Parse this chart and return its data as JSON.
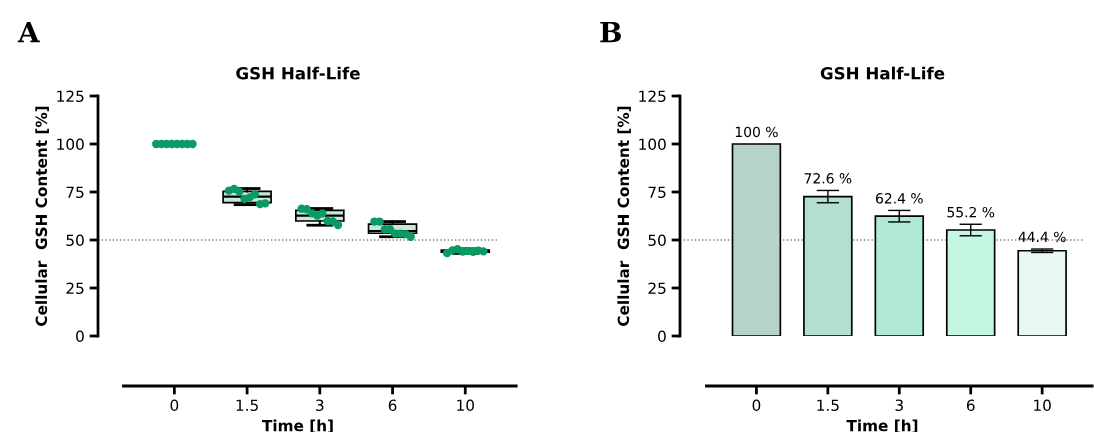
{
  "chart_data": [
    {
      "type": "box",
      "title": "GSH Half-Life",
      "xlabel": "Time [h]",
      "ylabel": "Cellular  GSH Content [%]",
      "annotations": [
        "A"
      ],
      "categories": [
        "0",
        "1.5",
        "3",
        "6",
        "10"
      ],
      "ylim": [
        0,
        125
      ],
      "yticks": [
        0,
        25,
        50,
        75,
        100,
        125
      ],
      "grid": false,
      "legend": false,
      "ref_lines": [
        {
          "axis": "y",
          "value": 50,
          "color": "#808080",
          "line_style": "dotted"
        }
      ],
      "series": [
        {
          "type": "box",
          "color": "#c9e8da",
          "boxes": [
            null,
            {
              "low": 68.4,
              "q1": 69.5,
              "median": 72.6,
              "q3": 75.3,
              "high": 76.8
            },
            {
              "low": 57.7,
              "q1": 59.9,
              "median": 62.7,
              "q3": 65.4,
              "high": 66.4
            },
            {
              "low": 51.7,
              "q1": 53.5,
              "median": 54.7,
              "q3": 58.3,
              "high": 59.6
            },
            {
              "low": 43.0,
              "q1": 43.6,
              "median": 44.3,
              "q3": 44.8,
              "high": 45.4
            }
          ]
        },
        {
          "type": "scatter",
          "color": "#0a9a64",
          "marker": "circle",
          "x": [
            "0",
            "0",
            "0",
            "0",
            "0",
            "0",
            "0",
            "0",
            "1.5",
            "1.5",
            "1.5",
            "1.5",
            "1.5",
            "1.5",
            "1.5",
            "1.5",
            "3",
            "3",
            "3",
            "3",
            "3",
            "3",
            "3",
            "3",
            "6",
            "6",
            "6",
            "6",
            "6",
            "6",
            "6",
            "6",
            "10",
            "10",
            "10",
            "10",
            "10",
            "10",
            "10",
            "10"
          ],
          "values": [
            100,
            100,
            100,
            100,
            100,
            100,
            100,
            100,
            75.7,
            76.6,
            75.2,
            71.4,
            72.2,
            73.8,
            68.7,
            69.1,
            66.3,
            66,
            63.9,
            62.7,
            63.9,
            59.9,
            59.7,
            57.8,
            59.6,
            59.6,
            55.6,
            55.6,
            53.3,
            53.3,
            53.1,
            51.7,
            43.2,
            44.6,
            45.2,
            44.0,
            44.3,
            43.8,
            44.5,
            44.1
          ]
        }
      ]
    },
    {
      "type": "bar",
      "title": "GSH Half-Life",
      "xlabel": "Time [h]",
      "ylabel": "Cellular  GSH Content [%]",
      "annotations": [
        "B"
      ],
      "categories": [
        "0",
        "1.5",
        "3",
        "6",
        "10"
      ],
      "values": [
        100,
        72.6,
        62.4,
        55.2,
        44.4
      ],
      "colors": [
        "#b5d3c6",
        "#b3dfd0",
        "#b0e9d4",
        "#c4f6e2",
        "#e6f8f0"
      ],
      "errors": [
        null,
        3.2,
        3.0,
        3.0,
        0.9
      ],
      "value_labels": [
        "100 %",
        "72.6 %",
        "62.4 %",
        "55.2 %",
        "44.4 %"
      ],
      "ylim": [
        0,
        125
      ],
      "yticks": [
        0,
        25,
        50,
        75,
        100,
        125
      ],
      "grid": false,
      "legend": false,
      "ref_lines": [
        {
          "axis": "y",
          "value": 50,
          "color": "#808080",
          "line_style": "dotted"
        }
      ]
    }
  ]
}
